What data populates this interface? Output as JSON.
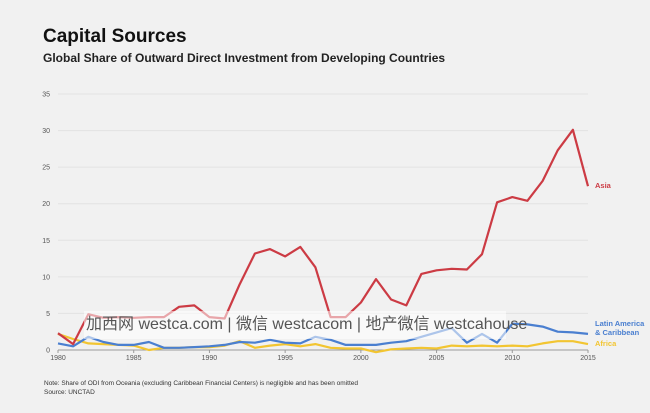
{
  "header": {
    "title": "Capital Sources",
    "subtitle": "Global Share of Outward Direct Investment from Developing Countries"
  },
  "footer": {
    "note": "Note: Share of ODI from Oceania (excluding Caribbean Financial Centers) is negligible and has been omitted",
    "source": "Source: UNCTAD"
  },
  "watermark": "加西网 westca.com | 微信 westcacom | 地产微信 westcahouse",
  "chart_data": {
    "type": "line",
    "title": "Global Share of Outward Direct Investment from Developing Countries",
    "xlabel": "",
    "ylabel": "",
    "xlim": [
      1980,
      2015
    ],
    "ylim": [
      0,
      35
    ],
    "grid": true,
    "legend": "inline-right",
    "x_ticks": [
      1980,
      1985,
      1990,
      1995,
      2000,
      2005,
      2010,
      2015
    ],
    "y_ticks": [
      0,
      5,
      10,
      15,
      20,
      25,
      30,
      35
    ],
    "x": [
      1980,
      1981,
      1982,
      1983,
      1984,
      1985,
      1986,
      1987,
      1988,
      1989,
      1990,
      1991,
      1992,
      1993,
      1994,
      1995,
      1996,
      1997,
      1998,
      1999,
      2000,
      2001,
      2002,
      2003,
      2004,
      2005,
      2006,
      2007,
      2008,
      2009,
      2010,
      2011,
      2012,
      2013,
      2014,
      2015
    ],
    "series": [
      {
        "name": "Asia",
        "label": "Asia",
        "color": "#cc3b44",
        "values": [
          2.3,
          0.8,
          4.9,
          4.4,
          4.5,
          4.4,
          4.5,
          4.5,
          5.9,
          6.1,
          4.5,
          4.3,
          9.0,
          13.2,
          13.8,
          12.8,
          14.1,
          11.3,
          4.5,
          4.5,
          6.5,
          9.7,
          6.9,
          6.1,
          10.4,
          10.9,
          11.1,
          11.0,
          13.1,
          20.2,
          20.9,
          20.4,
          23.1,
          27.3,
          30.1,
          22.4
        ]
      },
      {
        "name": "Latin America & Caribbean",
        "label": [
          "Latin America",
          "& Caribbean"
        ],
        "color": "#4a7fd0",
        "values": [
          0.9,
          0.5,
          1.8,
          1.1,
          0.7,
          0.7,
          1.1,
          0.3,
          0.3,
          0.4,
          0.5,
          0.7,
          1.1,
          1.0,
          1.4,
          1.0,
          0.9,
          1.8,
          1.4,
          0.7,
          0.7,
          0.7,
          1.0,
          1.2,
          1.8,
          2.4,
          3.0,
          1.0,
          2.2,
          1.0,
          3.6,
          3.5,
          3.2,
          2.5,
          2.4,
          2.2
        ]
      },
      {
        "name": "Africa",
        "label": "Africa",
        "color": "#f2c531",
        "values": [
          2.2,
          1.5,
          0.9,
          0.8,
          0.7,
          0.6,
          0.0,
          0.3,
          0.3,
          0.4,
          0.4,
          0.6,
          1.2,
          0.3,
          0.6,
          0.8,
          0.5,
          0.8,
          0.3,
          0.2,
          0.2,
          -0.3,
          0.1,
          0.2,
          0.3,
          0.2,
          0.6,
          0.5,
          0.6,
          0.5,
          0.6,
          0.5,
          0.9,
          1.2,
          1.2,
          0.8
        ]
      }
    ]
  }
}
